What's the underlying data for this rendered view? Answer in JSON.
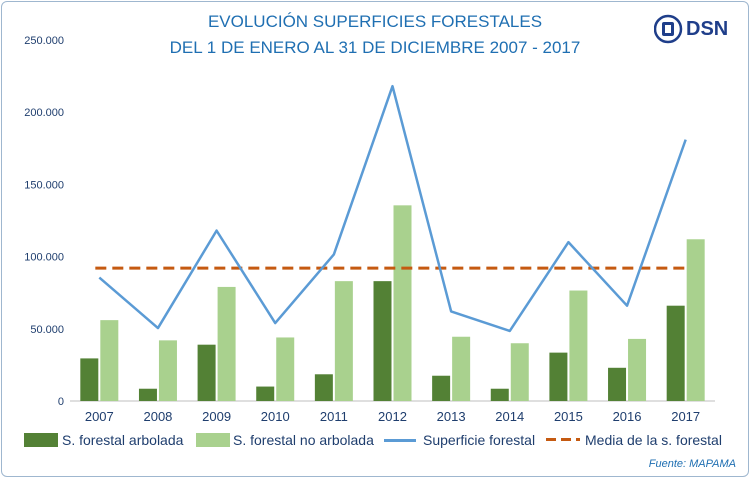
{
  "header": {
    "title_line1": "EVOLUCIÓN SUPERFICIES FORESTALES",
    "title_line2": "DEL 1 DE ENERO AL 31 DE DICIEMBRE 2007 - 2017",
    "logo_text": "DSN"
  },
  "source": "Fuente: MAPAMA",
  "colors": {
    "arbolada": "#538135",
    "no_arbolada": "#a9d18e",
    "superficie": "#5b9bd5",
    "media": "#c55a11",
    "axis_text": "#1f3e6e"
  },
  "chart_data": {
    "type": "bar",
    "categories": [
      "2007",
      "2008",
      "2009",
      "2010",
      "2011",
      "2012",
      "2013",
      "2014",
      "2015",
      "2016",
      "2017"
    ],
    "ylim": [
      0,
      250000
    ],
    "yticks": [
      0,
      50000,
      100000,
      150000,
      200000,
      250000
    ],
    "ytick_labels": [
      "0",
      "50.000",
      "100.000",
      "150.000",
      "200.000",
      "250.000"
    ],
    "series": [
      {
        "name": "S. forestal arbolada",
        "kind": "bar",
        "values": [
          29500,
          8500,
          39000,
          10000,
          18500,
          83000,
          17500,
          8500,
          33500,
          23000,
          66000
        ]
      },
      {
        "name": "S. forestal no arbolada",
        "kind": "bar",
        "values": [
          56000,
          42000,
          79000,
          44000,
          83000,
          135500,
          44500,
          40000,
          76500,
          43000,
          112000
        ]
      },
      {
        "name": "Superficie forestal",
        "kind": "line",
        "values": [
          85500,
          50500,
          118000,
          54000,
          101500,
          218000,
          62000,
          48500,
          110000,
          66000,
          181000
        ]
      },
      {
        "name": "Media de la s. forestal",
        "kind": "dashed",
        "values": [
          92000,
          92000,
          92000,
          92000,
          92000,
          92000,
          92000,
          92000,
          92000,
          92000,
          92000
        ]
      }
    ]
  }
}
